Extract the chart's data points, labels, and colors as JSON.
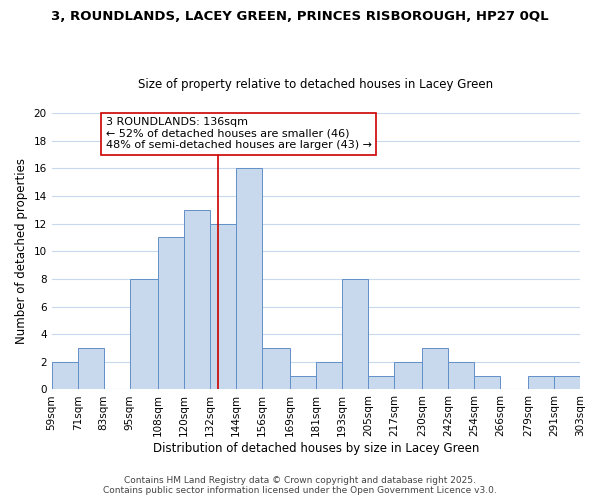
{
  "title": "3, ROUNDLANDS, LACEY GREEN, PRINCES RISBOROUGH, HP27 0QL",
  "subtitle": "Size of property relative to detached houses in Lacey Green",
  "xlabel": "Distribution of detached houses by size in Lacey Green",
  "ylabel": "Number of detached properties",
  "bin_edges": [
    59,
    71,
    83,
    95,
    108,
    120,
    132,
    144,
    156,
    169,
    181,
    193,
    205,
    217,
    230,
    242,
    254,
    266,
    279,
    291,
    303
  ],
  "bar_heights": [
    2,
    3,
    0,
    8,
    11,
    13,
    12,
    16,
    3,
    1,
    2,
    8,
    1,
    2,
    3,
    2,
    1,
    0,
    1,
    1
  ],
  "bar_color": "#c8d9ee",
  "bar_edge_color": "#6090c8",
  "grid_color": "#c8d9ee",
  "background_color": "#ffffff",
  "vline_x": 136,
  "vline_color": "#cc0000",
  "ylim": [
    0,
    20
  ],
  "yticks": [
    0,
    2,
    4,
    6,
    8,
    10,
    12,
    14,
    16,
    18,
    20
  ],
  "annotation_title": "3 ROUNDLANDS: 136sqm",
  "annotation_line1": "← 52% of detached houses are smaller (46)",
  "annotation_line2": "48% of semi-detached houses are larger (43) →",
  "footer_line1": "Contains HM Land Registry data © Crown copyright and database right 2025.",
  "footer_line2": "Contains public sector information licensed under the Open Government Licence v3.0.",
  "title_fontsize": 9.5,
  "subtitle_fontsize": 8.5,
  "axis_label_fontsize": 8.5,
  "tick_fontsize": 7.5,
  "annotation_fontsize": 8,
  "footer_fontsize": 6.5
}
